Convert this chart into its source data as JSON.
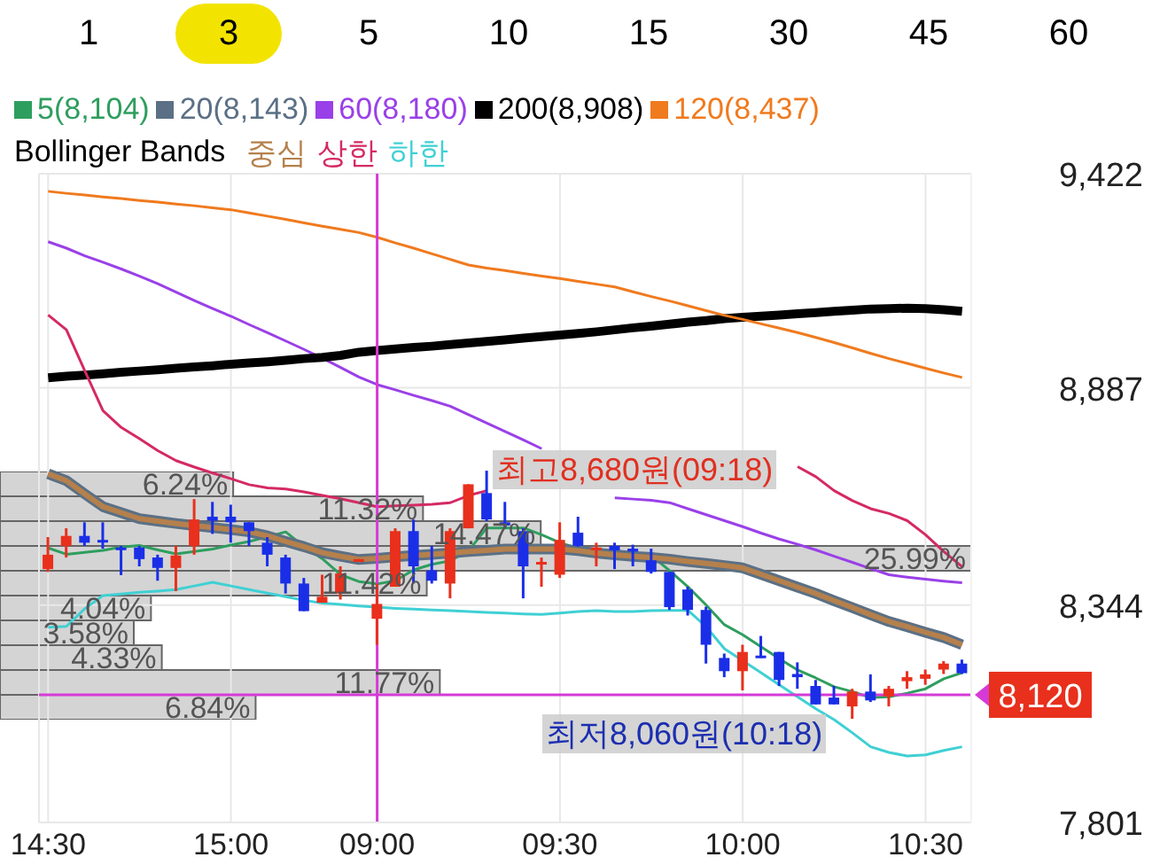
{
  "chart_data": [
    {
      "type": "candlestick",
      "legend": "top",
      "legend_title": "Bollinger Bands",
      "grid": true,
      "marker": "none",
      "annotations": [
        "1",
        "3",
        "5",
        "10",
        "15",
        "30",
        "45",
        "60",
        "최고8,680원(09:18)",
        "최저8,060원(10:18)"
      ],
      "categories": [
        "14:30",
        null,
        null,
        null,
        null,
        null,
        null,
        null,
        null,
        null,
        "15:00",
        null,
        null,
        null,
        null,
        null,
        null,
        null,
        "09:00",
        null,
        null,
        null,
        null,
        null,
        null,
        null,
        null,
        null,
        "09:30",
        null,
        null,
        null,
        null,
        null,
        null,
        null,
        null,
        null,
        "10:00",
        null,
        null,
        null,
        null,
        null,
        null,
        null,
        null,
        null,
        "10:30",
        null,
        null
      ],
      "ylim": [
        7801,
        9422
      ],
      "yticks": [
        {
          "value": 7801,
          "label": "7,801"
        },
        {
          "value": 8344,
          "label": "8,344"
        },
        {
          "value": 8887,
          "label": "8,887"
        },
        {
          "value": 9422,
          "label": "9,422"
        }
      ],
      "ref_lines": [
        {
          "axis": "x",
          "value": "09:00",
          "color": "#d63ad6"
        },
        {
          "axis": "y",
          "value": 8120,
          "label": "8,120",
          "color": "#d63ad6"
        }
      ],
      "ohlc": [
        [
          8434,
          8514,
          8427,
          8470
        ],
        [
          8492,
          8536,
          8463,
          8517
        ],
        [
          8517,
          8551,
          8492,
          8500
        ],
        [
          8507,
          8551,
          8485,
          8504
        ],
        [
          8488,
          8492,
          8419,
          8485
        ],
        [
          8488,
          8492,
          8441,
          8459
        ],
        [
          8463,
          8470,
          8405,
          8437
        ],
        [
          8437,
          8492,
          8379,
          8468
        ],
        [
          8492,
          8609,
          8470,
          8558
        ],
        [
          8565,
          8602,
          8522,
          8555
        ],
        [
          8565,
          8595,
          8500,
          8551
        ],
        [
          8551,
          8551,
          8492,
          8529
        ],
        [
          8500,
          8514,
          8441,
          8470
        ],
        [
          8463,
          8470,
          8373,
          8398
        ],
        [
          8398,
          8412,
          8329,
          8329
        ],
        [
          8350,
          8420,
          8350,
          8365
        ],
        [
          8373,
          8441,
          8358,
          8423
        ],
        [
          8452,
          8459,
          8452,
          8459
        ],
        [
          8310,
          8398,
          8245,
          8347
        ],
        [
          8390,
          8536,
          8390,
          8529
        ],
        [
          8529,
          8558,
          8398,
          8441
        ],
        [
          8431,
          8492,
          8398,
          8405
        ],
        [
          8398,
          8536,
          8361,
          8529
        ],
        [
          8536,
          8646,
          8536,
          8646
        ],
        [
          8624,
          8680,
          8554,
          8558
        ],
        [
          8551,
          8602,
          8536,
          8543
        ],
        [
          8529,
          8536,
          8361,
          8441
        ],
        [
          8448,
          8463,
          8390,
          8452
        ],
        [
          8420,
          8551,
          8412,
          8507
        ],
        [
          8525,
          8565,
          8490,
          8492
        ],
        [
          8482,
          8500,
          8441,
          8488
        ],
        [
          8492,
          8500,
          8434,
          8481
        ],
        [
          8485,
          8495,
          8441,
          8478
        ],
        [
          8456,
          8485,
          8423,
          8427
        ],
        [
          8427,
          8427,
          8332,
          8339
        ],
        [
          8383,
          8390,
          8318,
          8332
        ],
        [
          8332,
          8340,
          8198,
          8245
        ],
        [
          8212,
          8223,
          8164,
          8179
        ],
        [
          8179,
          8245,
          8131,
          8227
        ],
        [
          8218,
          8267,
          8212,
          8212
        ],
        [
          8227,
          8227,
          8142,
          8157
        ],
        [
          8172,
          8201,
          8135,
          8164
        ],
        [
          8142,
          8157,
          8096,
          8096
        ],
        [
          8113,
          8142,
          8096,
          8096
        ],
        [
          8091,
          8135,
          8060,
          8128
        ],
        [
          8128,
          8171,
          8102,
          8106
        ],
        [
          8116,
          8142,
          8091,
          8135
        ],
        [
          8154,
          8179,
          8135,
          8164
        ],
        [
          8160,
          8183,
          8145,
          8171
        ],
        [
          8183,
          8204,
          8172,
          8198
        ],
        [
          8198,
          8208,
          8172,
          8174
        ]
      ],
      "series": [
        {
          "name": "5(8,104)",
          "type": "line",
          "color": "#2e9e5e",
          "values": [
            8487,
            8471,
            8476,
            8481,
            8489,
            8493,
            8482,
            8472,
            8478,
            8484,
            8494,
            8503,
            8515,
            8527,
            8490,
            8460,
            8420,
            8403,
            8397,
            8405,
            8432,
            8446,
            8455,
            8480,
            8537,
            8537,
            8537,
            8520,
            8500,
            8486,
            8481,
            8479,
            8474,
            8468,
            8430,
            8390,
            8344,
            8295,
            8270,
            8240,
            8210,
            8182,
            8162,
            8140,
            8128,
            8113,
            8115,
            8124,
            8135,
            8160,
            8175
          ]
        },
        {
          "name": "20(8,143)",
          "type": "line",
          "color": "#5b7085",
          "values": [
            8672,
            8655,
            8622,
            8590,
            8575,
            8560,
            8554,
            8548,
            8543,
            8538,
            8533,
            8527,
            8517,
            8503,
            8490,
            8475,
            8466,
            8458,
            8461,
            8465,
            8468,
            8471,
            8474,
            8478,
            8481,
            8484,
            8484,
            8484,
            8484,
            8480,
            8474,
            8470,
            8466,
            8463,
            8459,
            8453,
            8448,
            8443,
            8437,
            8421,
            8405,
            8389,
            8373,
            8355,
            8338,
            8320,
            8303,
            8290,
            8276,
            8263,
            8245
          ]
        },
        {
          "name": "60(8,180)",
          "type": "line",
          "color": "#9a40e8",
          "values": [
            9252,
            9236,
            9217,
            9201,
            9184,
            9166,
            9147,
            9126,
            9105,
            9085,
            9066,
            9045,
            9025,
            9004,
            8983,
            8961,
            8938,
            8914,
            8895,
            8882,
            8868,
            8855,
            8841,
            8820,
            8799,
            8778,
            8757,
            8735,
            null,
            null,
            null,
            8612,
            8609,
            8606,
            8600,
            8585,
            8570,
            8555,
            8540,
            8524,
            8509,
            8496,
            8482,
            8466,
            8451,
            8435,
            8420,
            8414,
            8409,
            8404,
            8400
          ]
        },
        {
          "name": "200(8,908)",
          "type": "line",
          "color": "#000000",
          "values": [
            8912,
            8916,
            8919,
            8922,
            8926,
            8929,
            8932,
            8936,
            8939,
            8942,
            8946,
            8949,
            8952,
            8956,
            8960,
            8963,
            8968,
            8976,
            8980,
            8984,
            8988,
            8991,
            8995,
            8999,
            9003,
            9007,
            9011,
            9015,
            9019,
            9023,
            9027,
            9032,
            9037,
            9041,
            9046,
            9051,
            9055,
            9060,
            9063,
            9066,
            9069,
            9072,
            9075,
            9078,
            9081,
            9084,
            9085,
            9086,
            9085,
            9082,
            9078
          ]
        },
        {
          "name": "120(8,437)",
          "type": "line",
          "color": "#f07a1e",
          "values": [
            9378,
            9373,
            9369,
            9364,
            9360,
            9355,
            9351,
            9346,
            9342,
            9337,
            9332,
            9324,
            9316,
            9308,
            9299,
            9291,
            9283,
            9275,
            9263,
            9249,
            9236,
            9222,
            9208,
            9194,
            9186,
            9180,
            9173,
            9166,
            9160,
            9153,
            9146,
            9139,
            9127,
            9115,
            9104,
            9092,
            9080,
            9068,
            9058,
            9047,
            9036,
            9025,
            9013,
            9000,
            8987,
            8973,
            8960,
            8948,
            8936,
            8924,
            8913
          ]
        },
        {
          "name": "중심",
          "type": "line",
          "color": "#b5804c",
          "values": [
            8672,
            8655,
            8622,
            8590,
            8575,
            8560,
            8554,
            8548,
            8543,
            8538,
            8533,
            8527,
            8517,
            8503,
            8490,
            8475,
            8466,
            8458,
            8461,
            8465,
            8468,
            8471,
            8474,
            8478,
            8481,
            8484,
            8484,
            8484,
            8484,
            8480,
            8474,
            8470,
            8466,
            8463,
            8459,
            8453,
            8448,
            8443,
            8437,
            8421,
            8405,
            8389,
            8373,
            8355,
            8338,
            8320,
            8303,
            8290,
            8276,
            8263,
            8245
          ]
        },
        {
          "name": "상한",
          "type": "line",
          "color": "#d42a64",
          "values": [
            9069,
            9032,
            8930,
            8830,
            8788,
            8760,
            8730,
            8705,
            8689,
            8674,
            8660,
            8645,
            8637,
            8634,
            8627,
            8618,
            8610,
            8600,
            8590,
            8592,
            8594,
            8596,
            8600,
            8618,
            8630,
            null,
            null,
            null,
            null,
            null,
            null,
            null,
            null,
            null,
            null,
            null,
            null,
            null,
            null,
            null,
            null,
            8690,
            8665,
            8630,
            8605,
            8585,
            8573,
            8555,
            8520,
            8478,
            8440
          ]
        },
        {
          "name": "하한",
          "type": "line",
          "color": "#3fd0d4",
          "values": [
            8289,
            8291,
            8335,
            8368,
            8372,
            8376,
            8379,
            8383,
            8392,
            8401,
            8392,
            8383,
            8374,
            8365,
            8356,
            8349,
            8346,
            8342,
            8339,
            8336,
            8334,
            8332,
            8330,
            8328,
            8326,
            8324,
            8322,
            8321,
            8324,
            8328,
            8330,
            8328,
            8328,
            8330,
            8331,
            8331,
            8290,
            8235,
            8205,
            8175,
            8145,
            8115,
            8085,
            8058,
            8025,
            7990,
            7976,
            7967,
            7970,
            7981,
            7990
          ]
        }
      ]
    },
    {
      "type": "bar",
      "orientation": "horizontal",
      "tick_labels": false,
      "color": "#d4d4d4",
      "categories": [
        null,
        null,
        null,
        null,
        null,
        null,
        null,
        null,
        null,
        null
      ],
      "values": [
        6.24,
        11.32,
        14.47,
        25.99,
        11.42,
        4.04,
        3.58,
        4.33,
        11.77,
        6.84
      ],
      "value_labels": [
        "6.24%",
        "11.32%",
        "14.47%",
        "25.99%",
        "11.42%",
        "4.04%",
        "3.58%",
        "4.33%",
        "11.77%",
        "6.84%"
      ]
    }
  ]
}
